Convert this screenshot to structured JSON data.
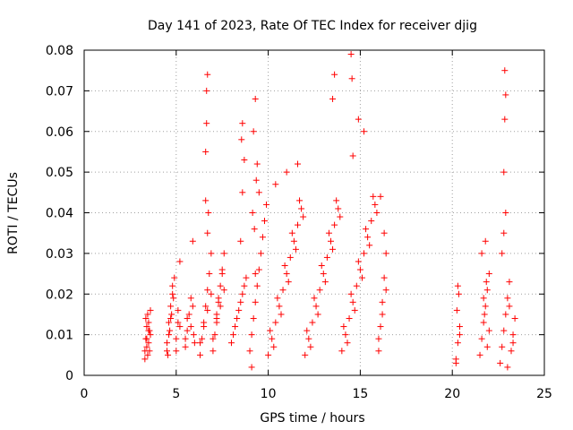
{
  "chart_data": {
    "type": "scatter",
    "title": "Day 141 of 2023, Rate Of TEC Index for receiver djig",
    "xlabel": "GPS time / hours",
    "ylabel": "ROTI / TECUs",
    "xlim": [
      0,
      25
    ],
    "ylim": [
      0,
      0.08
    ],
    "xticks": [
      0,
      5,
      10,
      15,
      20,
      25
    ],
    "xtick_labels": [
      "0",
      "5",
      "10",
      "15",
      "20",
      "25"
    ],
    "yticks": [
      0,
      0.01,
      0.02,
      0.03,
      0.04,
      0.05,
      0.06,
      0.07,
      0.08
    ],
    "ytick_labels": [
      "0",
      "0.01",
      "0.02",
      "0.03",
      "0.04",
      "0.05",
      "0.06",
      "0.07",
      "0.08"
    ],
    "grid": true,
    "marker": "+",
    "color": "#ff0000",
    "series": [
      {
        "x": [
          3.3,
          3.35,
          3.4,
          3.45,
          3.5,
          3.55,
          3.6,
          3.3,
          3.4,
          3.5,
          3.6,
          3.45,
          3.35,
          3.55,
          3.4,
          3.5,
          4.5,
          4.6,
          4.7,
          4.8,
          4.5,
          4.6,
          4.7,
          4.8,
          4.55,
          4.65,
          4.75,
          4.85,
          4.9,
          5.0,
          5.1,
          5.2,
          5.0,
          5.1,
          5.2,
          5.5,
          5.6,
          5.7,
          5.8,
          5.9,
          5.5,
          5.6,
          5.8,
          5.9,
          5.95,
          6.0,
          6.3,
          6.4,
          6.5,
          6.6,
          6.7,
          6.8,
          6.9,
          6.3,
          6.5,
          6.7,
          6.9,
          6.6,
          6.65,
          6.65,
          6.7,
          6.75,
          6.6,
          6.7,
          7.0,
          7.1,
          7.2,
          7.3,
          7.4,
          7.5,
          7.6,
          7.0,
          7.2,
          7.4,
          7.6,
          7.5,
          7.3,
          7.2,
          8.0,
          8.2,
          8.4,
          8.6,
          8.8,
          8.1,
          8.3,
          8.5,
          8.7,
          8.5,
          8.6,
          8.7,
          8.6,
          8.55,
          9.0,
          9.1,
          9.2,
          9.3,
          9.4,
          9.5,
          9.6,
          9.7,
          9.8,
          9.9,
          9.2,
          9.3,
          9.4,
          9.5,
          9.15,
          9.25,
          9.35,
          9.1,
          9.3,
          10.0,
          10.2,
          10.4,
          10.6,
          10.8,
          11.0,
          11.2,
          11.4,
          11.6,
          11.8,
          10.1,
          10.5,
          10.9,
          11.3,
          11.7,
          10.3,
          10.7,
          11.1,
          11.5,
          11.9,
          10.4,
          11.0,
          11.6,
          12.0,
          12.2,
          12.4,
          12.6,
          12.8,
          13.0,
          13.2,
          13.4,
          13.6,
          13.8,
          12.1,
          12.5,
          12.9,
          13.3,
          13.7,
          12.3,
          12.7,
          13.1,
          13.5,
          13.9,
          13.5,
          13.6,
          14.0,
          14.2,
          14.4,
          14.6,
          14.8,
          15.0,
          15.2,
          15.4,
          15.6,
          15.8,
          14.1,
          14.5,
          14.9,
          15.3,
          15.7,
          14.3,
          14.7,
          15.1,
          15.5,
          15.9,
          14.5,
          14.55,
          14.9,
          15.2,
          14.6,
          16.0,
          16.1,
          16.2,
          16.3,
          16.4,
          16.0,
          16.2,
          16.4,
          16.1,
          16.3,
          20.2,
          20.3,
          20.4,
          20.25,
          20.35,
          20.3,
          20.2,
          20.4,
          21.5,
          21.6,
          21.7,
          21.8,
          21.9,
          22.0,
          21.6,
          21.8,
          22.0,
          21.7,
          21.9,
          21.75,
          21.85,
          22.6,
          22.7,
          22.8,
          22.9,
          23.0,
          23.1,
          23.2,
          23.3,
          23.4,
          22.7,
          22.9,
          23.1,
          23.3,
          22.8,
          22.85,
          22.85,
          22.9,
          22.8,
          23.0
        ],
        "y": [
          0.006,
          0.009,
          0.012,
          0.015,
          0.008,
          0.011,
          0.016,
          0.004,
          0.007,
          0.013,
          0.01,
          0.005,
          0.014,
          0.006,
          0.009,
          0.011,
          0.006,
          0.01,
          0.014,
          0.02,
          0.008,
          0.013,
          0.017,
          0.022,
          0.005,
          0.011,
          0.015,
          0.019,
          0.024,
          0.009,
          0.013,
          0.028,
          0.006,
          0.016,
          0.012,
          0.007,
          0.011,
          0.015,
          0.019,
          0.033,
          0.009,
          0.014,
          0.012,
          0.017,
          0.01,
          0.008,
          0.005,
          0.009,
          0.013,
          0.017,
          0.021,
          0.025,
          0.03,
          0.008,
          0.012,
          0.016,
          0.02,
          0.055,
          0.062,
          0.07,
          0.074,
          0.04,
          0.043,
          0.035,
          0.006,
          0.01,
          0.014,
          0.018,
          0.022,
          0.026,
          0.03,
          0.009,
          0.013,
          0.017,
          0.021,
          0.025,
          0.019,
          0.015,
          0.008,
          0.012,
          0.016,
          0.02,
          0.024,
          0.01,
          0.014,
          0.018,
          0.022,
          0.033,
          0.045,
          0.053,
          0.062,
          0.058,
          0.006,
          0.01,
          0.014,
          0.018,
          0.022,
          0.026,
          0.03,
          0.034,
          0.038,
          0.042,
          0.06,
          0.068,
          0.052,
          0.045,
          0.04,
          0.036,
          0.048,
          0.002,
          0.025,
          0.005,
          0.009,
          0.013,
          0.017,
          0.021,
          0.025,
          0.029,
          0.033,
          0.037,
          0.041,
          0.011,
          0.019,
          0.027,
          0.035,
          0.043,
          0.007,
          0.015,
          0.023,
          0.031,
          0.039,
          0.047,
          0.05,
          0.052,
          0.005,
          0.009,
          0.013,
          0.017,
          0.021,
          0.025,
          0.029,
          0.033,
          0.037,
          0.041,
          0.011,
          0.019,
          0.027,
          0.035,
          0.043,
          0.007,
          0.015,
          0.023,
          0.031,
          0.039,
          0.068,
          0.074,
          0.006,
          0.01,
          0.014,
          0.018,
          0.022,
          0.026,
          0.03,
          0.034,
          0.038,
          0.042,
          0.012,
          0.02,
          0.028,
          0.036,
          0.044,
          0.008,
          0.016,
          0.024,
          0.032,
          0.04,
          0.079,
          0.073,
          0.063,
          0.06,
          0.054,
          0.006,
          0.012,
          0.018,
          0.024,
          0.03,
          0.009,
          0.015,
          0.021,
          0.044,
          0.035,
          0.004,
          0.008,
          0.012,
          0.016,
          0.02,
          0.022,
          0.003,
          0.01,
          0.005,
          0.009,
          0.013,
          0.017,
          0.021,
          0.025,
          0.03,
          0.033,
          0.011,
          0.019,
          0.007,
          0.015,
          0.023,
          0.003,
          0.007,
          0.011,
          0.015,
          0.019,
          0.023,
          0.006,
          0.01,
          0.014,
          0.03,
          0.04,
          0.017,
          0.008,
          0.05,
          0.063,
          0.075,
          0.069,
          0.035,
          0.002
        ]
      }
    ]
  }
}
